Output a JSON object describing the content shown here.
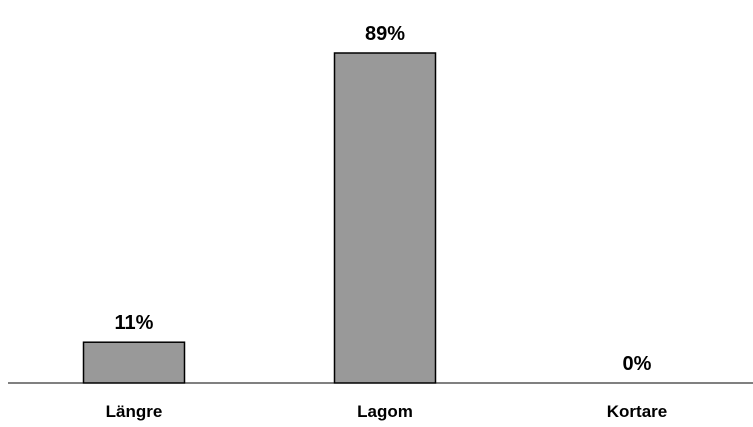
{
  "chart_data": {
    "type": "bar",
    "title": "",
    "xlabel": "",
    "ylabel": "",
    "categories": [
      "Längre",
      "Lagom",
      "Kortare"
    ],
    "values": [
      11,
      89,
      0
    ],
    "value_labels": [
      "11%",
      "89%",
      "0%"
    ],
    "unit": "%",
    "ylim": [
      0,
      100
    ],
    "grid": false,
    "legend": "none",
    "bar_color": "#999999",
    "bar_edge_color": "#000000"
  }
}
